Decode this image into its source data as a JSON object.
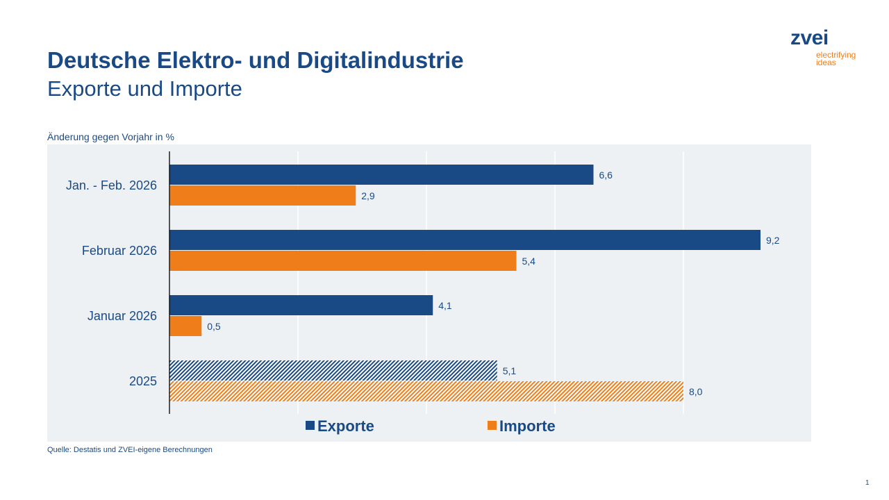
{
  "header": {
    "title": "Deutsche Elektro- und Digitalindustrie",
    "subtitle": "Exporte und Importe"
  },
  "logo": {
    "word": "zvei",
    "tagline": "electrifying ideas"
  },
  "footer": {
    "source": "Quelle: Destatis und ZVEI-eigene Berechnungen",
    "page": "1"
  },
  "chart_data": {
    "type": "bar",
    "orientation": "horizontal",
    "ylabel": "Änderung gegen Vorjahr in %",
    "categories": [
      "Jan. - Feb. 2026",
      "Februar 2026",
      "Januar 2026",
      "2025"
    ],
    "series": [
      {
        "name": "Exporte",
        "color": "#1a4a85",
        "values": [
          6.6,
          9.2,
          4.1,
          5.1
        ],
        "labels": [
          "6,6",
          "9,2",
          "4,1",
          "5,1"
        ]
      },
      {
        "name": "Importe",
        "color": "#ef7d1a",
        "values": [
          2.9,
          5.4,
          0.5,
          8.0
        ],
        "labels": [
          "2,9",
          "5,4",
          "0,5",
          "8,0"
        ]
      }
    ],
    "hatched_categories": [
      "2025"
    ],
    "xlim": [
      0,
      10
    ],
    "gridlines": [
      2,
      4,
      6,
      8
    ],
    "grid": true,
    "legend": "bottom",
    "background": "#edf1f3"
  }
}
